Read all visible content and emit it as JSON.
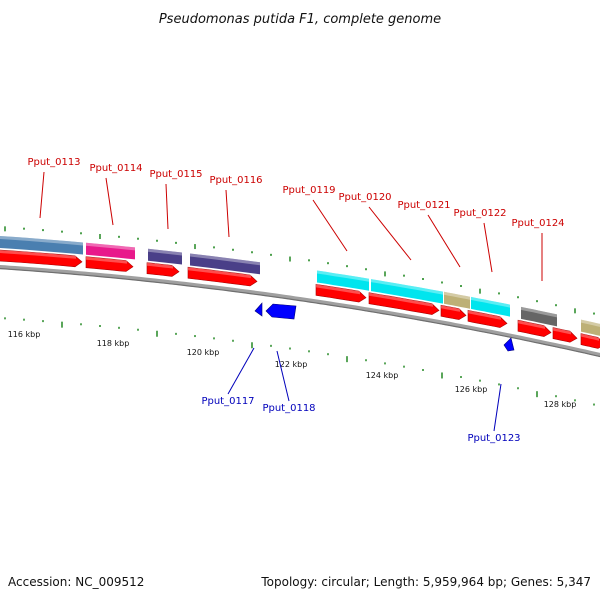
{
  "title": "Pseudomonas putida F1, complete genome",
  "footer": {
    "accession": "Accession: NC_009512",
    "summary": "Topology: circular; Length: 5,959,964 bp; Genes: 5,347"
  },
  "colors": {
    "forward_label": "#cc0000",
    "reverse_label": "#0000bb",
    "cds_forward": "#ff0000",
    "cds_reverse": "#0000ff",
    "backbone": "#888888",
    "tick": "#007700"
  },
  "ruler_labels": [
    "116 kbp",
    "118 kbp",
    "120 kbp",
    "122 kbp",
    "124 kbp",
    "126 kbp",
    "128 kbp"
  ],
  "forward_genes": [
    {
      "name": "",
      "product_color": "#4a7fb0"
    },
    {
      "name": "Pput_0113",
      "product_color": "#4a7fb0"
    },
    {
      "name": "Pput_0114",
      "product_color": "#e8198b"
    },
    {
      "name": "Pput_0115",
      "product_color": "#4a3f88"
    },
    {
      "name": "Pput_0116",
      "product_color": "#4a3f88"
    },
    {
      "name": "Pput_0119",
      "product_color": "#00e5ee"
    },
    {
      "name": "Pput_0120",
      "product_color": "#00e5ee"
    },
    {
      "name": "Pput_0121",
      "product_color": "#bdb076"
    },
    {
      "name": "Pput_0122",
      "product_color": "#00e5ee"
    },
    {
      "name": "Pput_0124",
      "product_color": "#666666"
    },
    {
      "name": "",
      "product_color": ""
    },
    {
      "name": "",
      "product_color": "#bdb076"
    }
  ],
  "reverse_genes": [
    {
      "name": "Pput_0117"
    },
    {
      "name": "Pput_0118"
    },
    {
      "name": "Pput_0123"
    }
  ]
}
